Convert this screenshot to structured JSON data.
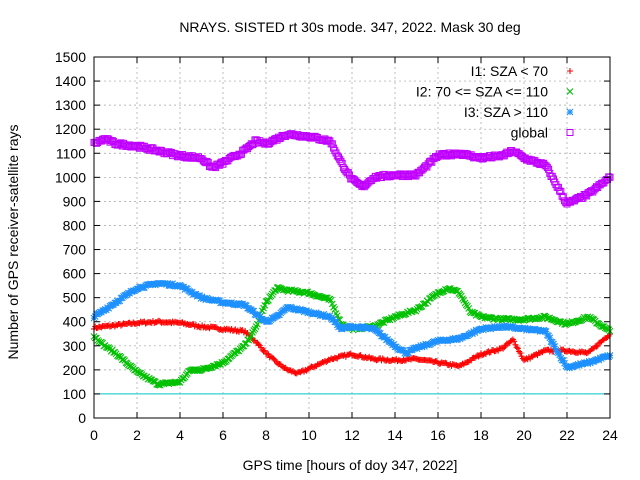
{
  "chart_data": {
    "type": "scatter",
    "title": "NRAYS. SISTED rt 30s mode. 347, 2022. Mask 30 deg",
    "xlabel": "GPS time [hours of doy 347, 2022]",
    "ylabel": "Number of GPS receiver-satellite rays",
    "xlim": [
      0,
      24
    ],
    "ylim": [
      0,
      1500
    ],
    "xticks": [
      0,
      2,
      4,
      6,
      8,
      10,
      12,
      14,
      16,
      18,
      20,
      22,
      24
    ],
    "yticks": [
      0,
      100,
      200,
      300,
      400,
      500,
      600,
      700,
      800,
      900,
      1000,
      1100,
      1200,
      1300,
      1400,
      1500
    ],
    "grid": true,
    "legend_position": "top-right",
    "reference_line": {
      "y": 100,
      "color": "#00c8c8"
    },
    "series": [
      {
        "name": "I1: SZA < 70",
        "marker": "+",
        "color": "#ff0000",
        "x": [
          0,
          1,
          2,
          3,
          4,
          5,
          6,
          7,
          7.5,
          8,
          8.5,
          9,
          9.5,
          10,
          11,
          12,
          13,
          14,
          15,
          16,
          17,
          18,
          19,
          19.5,
          20,
          21,
          22,
          23,
          24
        ],
        "y": [
          375,
          385,
          395,
          400,
          395,
          380,
          370,
          360,
          320,
          270,
          230,
          200,
          185,
          205,
          245,
          265,
          245,
          240,
          245,
          230,
          215,
          265,
          290,
          325,
          240,
          280,
          280,
          270,
          350
        ]
      },
      {
        "name": "I2: 70 <= SZA <= 110",
        "marker": "x",
        "color": "#00c000",
        "x": [
          0,
          0.5,
          1,
          2,
          3,
          4,
          4.5,
          5,
          6,
          7,
          7.5,
          8,
          8.5,
          9,
          10,
          11,
          11.5,
          12,
          13,
          14,
          15,
          16,
          16.5,
          17,
          17.5,
          18,
          19,
          20,
          21,
          22,
          23,
          24
        ],
        "y": [
          340,
          300,
          270,
          190,
          140,
          150,
          200,
          200,
          230,
          300,
          370,
          480,
          540,
          530,
          520,
          490,
          390,
          370,
          380,
          420,
          450,
          520,
          540,
          520,
          440,
          420,
          410,
          410,
          420,
          390,
          420,
          360
        ]
      },
      {
        "name": "I3: SZA > 110",
        "marker": "*",
        "color": "#1e90ff",
        "x": [
          0,
          1,
          2,
          3,
          4,
          5,
          6,
          7,
          7.7,
          8,
          8.5,
          9,
          10,
          11,
          11.5,
          12,
          13,
          14,
          14.5,
          15,
          16,
          17,
          18,
          19,
          20,
          21,
          22,
          23,
          24
        ],
        "y": [
          420,
          480,
          540,
          560,
          550,
          500,
          480,
          470,
          420,
          400,
          420,
          460,
          440,
          420,
          370,
          380,
          370,
          300,
          270,
          290,
          320,
          330,
          370,
          380,
          370,
          360,
          210,
          230,
          260
        ]
      },
      {
        "name": "global",
        "marker": "square",
        "color": "#c000ff",
        "x": [
          0,
          0.5,
          1,
          2,
          3,
          4,
          5,
          5.5,
          6,
          7,
          7.5,
          8,
          8.5,
          9,
          10,
          11,
          11.5,
          12,
          12.5,
          13,
          14,
          15,
          16,
          17,
          18,
          19,
          19.5,
          20,
          21,
          22,
          23,
          24
        ],
        "y": [
          1140,
          1160,
          1140,
          1130,
          1110,
          1090,
          1080,
          1040,
          1060,
          1110,
          1150,
          1140,
          1160,
          1180,
          1170,
          1150,
          1060,
          990,
          960,
          1000,
          1010,
          1010,
          1090,
          1100,
          1080,
          1090,
          1110,
          1080,
          1050,
          890,
          930,
          1000
        ]
      }
    ]
  }
}
